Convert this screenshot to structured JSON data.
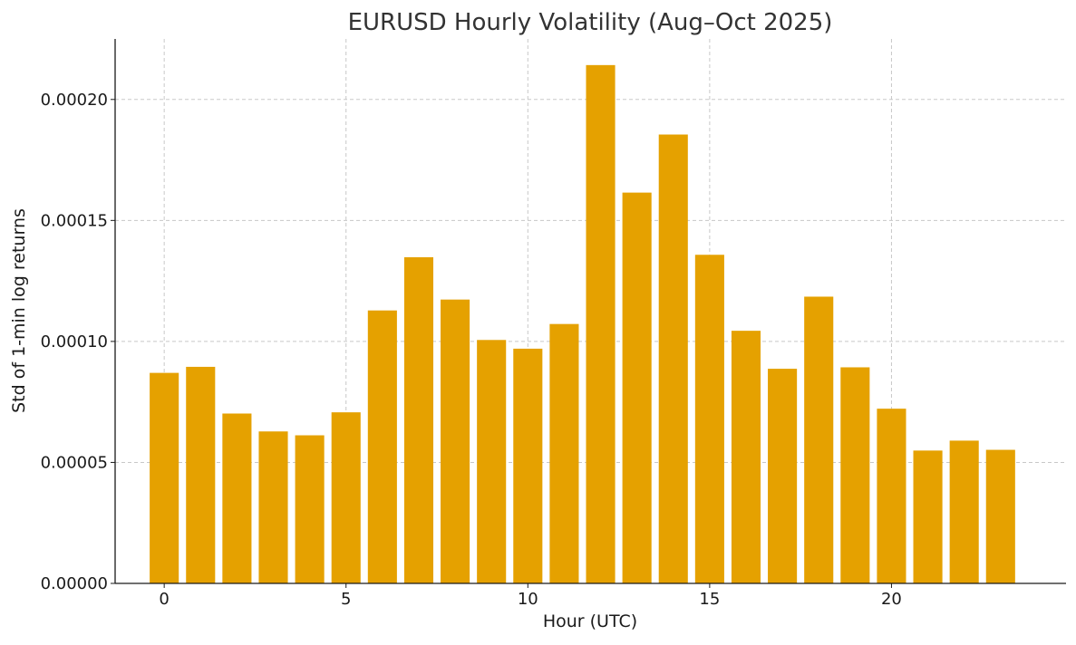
{
  "chart_data": {
    "type": "bar",
    "title": "EURUSD Hourly Volatility (Aug–Oct 2025)",
    "xlabel": "Hour (UTC)",
    "ylabel": "Std of 1-min log returns",
    "categories": [
      0,
      1,
      2,
      3,
      4,
      5,
      6,
      7,
      8,
      9,
      10,
      11,
      12,
      13,
      14,
      15,
      16,
      17,
      18,
      19,
      20,
      21,
      22,
      23
    ],
    "values": [
      8.7e-05,
      8.95e-05,
      7.02e-05,
      6.28e-05,
      6.12e-05,
      7.07e-05,
      0.0001128,
      0.0001348,
      0.0001173,
      0.0001006,
      9.7e-05,
      0.0001072,
      0.0002142,
      0.0001615,
      0.0001855,
      0.0001358,
      0.0001044,
      8.87e-05,
      0.0001185,
      8.93e-05,
      7.22e-05,
      5.49e-05,
      5.9e-05,
      5.52e-05
    ],
    "xlim": [
      -1.35,
      24.8
    ],
    "ylim": [
      0,
      0.000225
    ],
    "xticks": [
      0,
      5,
      10,
      15,
      20
    ],
    "xtick_labels": [
      "0",
      "5",
      "10",
      "15",
      "20"
    ],
    "yticks": [
      0,
      5e-05,
      0.0001,
      0.00015,
      0.0002
    ],
    "ytick_labels": [
      "0.00000",
      "0.00005",
      "0.00010",
      "0.00015",
      "0.00020"
    ],
    "bar_color": "#E5A100",
    "grid": true,
    "grid_color": "#c8c8c8",
    "axis_color": "#1a1a1a",
    "text_color": "#333333"
  }
}
